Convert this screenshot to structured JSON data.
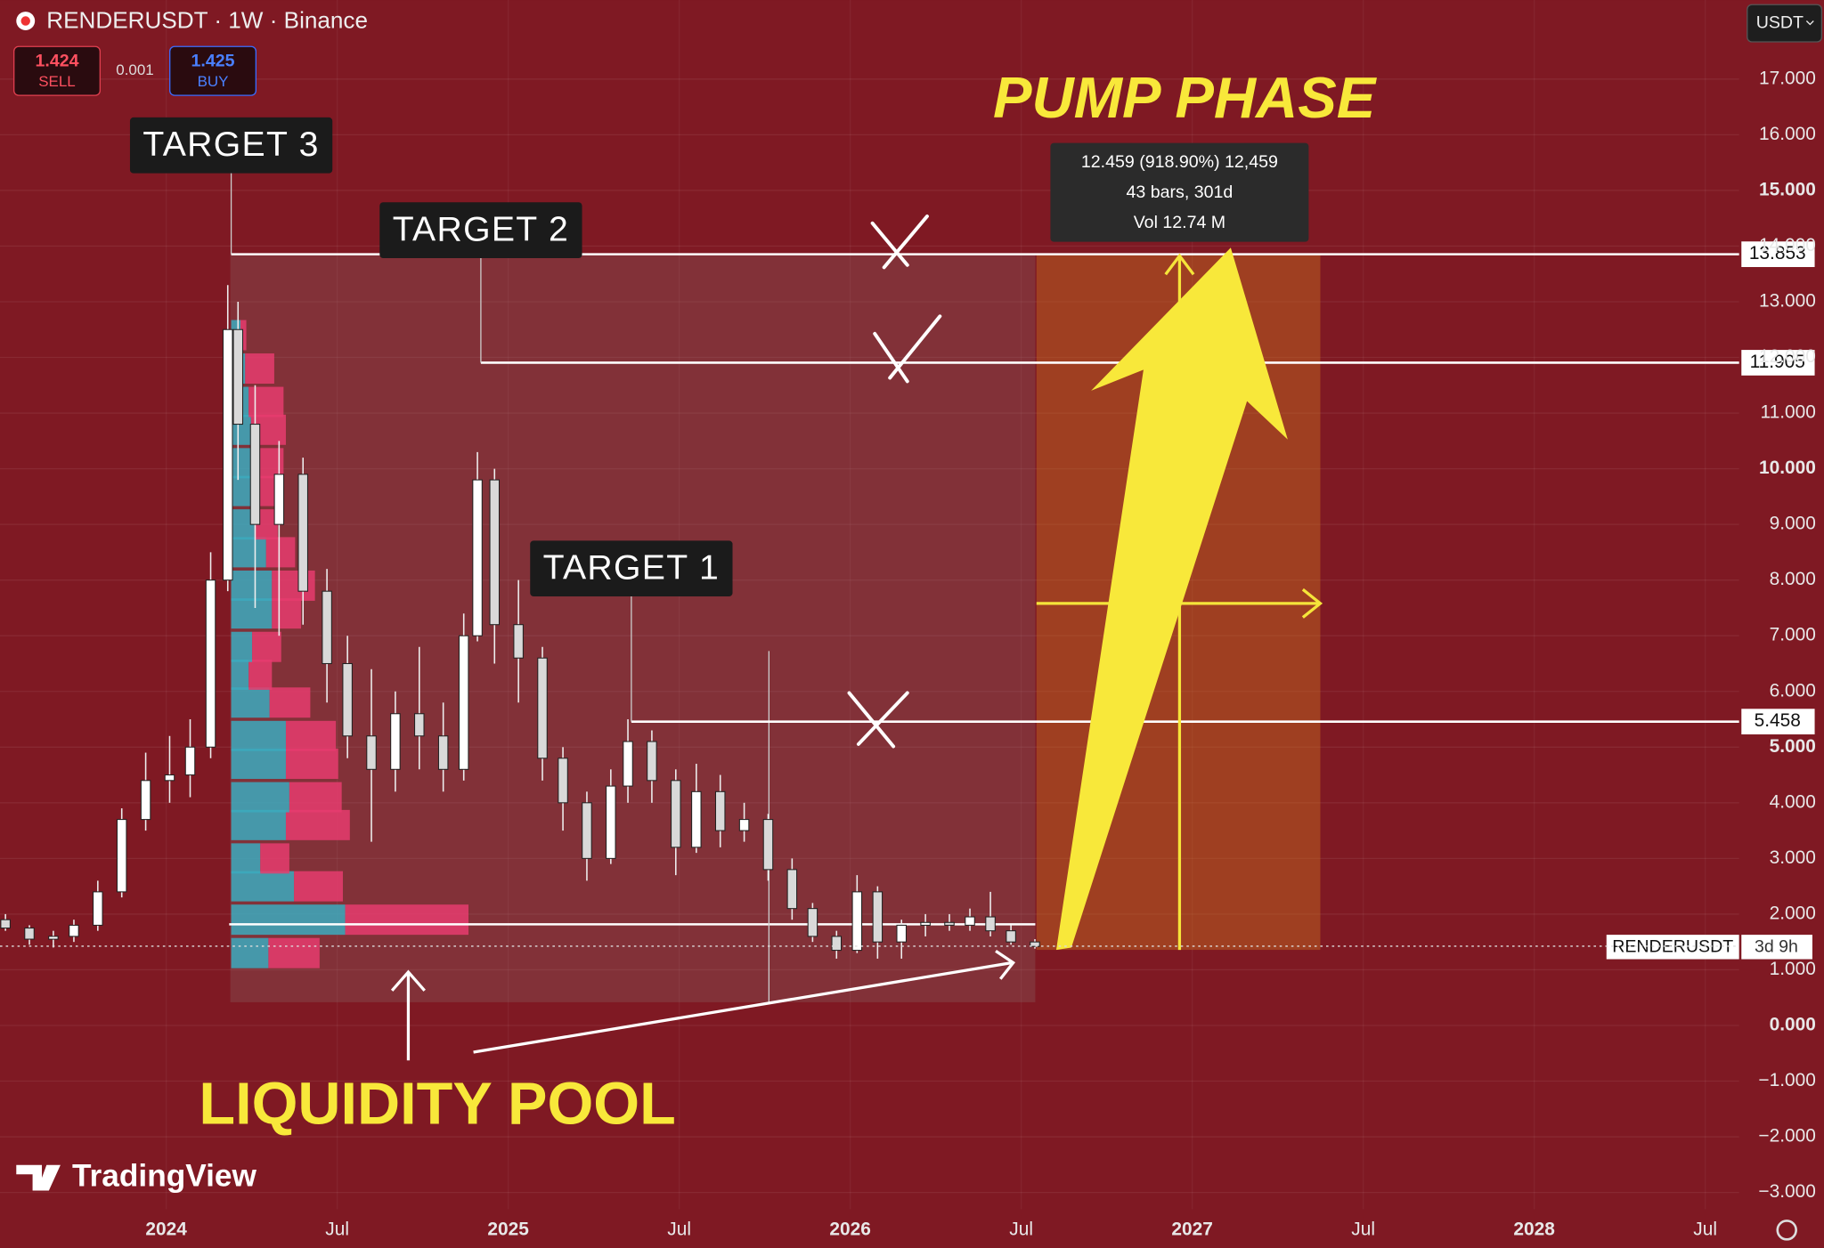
{
  "header": {
    "symbol": "RENDERUSDT · 1W · Binance",
    "sell_price": "1.424",
    "sell_label": "SELL",
    "spread": "0.001",
    "buy_price": "1.425",
    "buy_label": "BUY",
    "currency": "USDT"
  },
  "chart_data": {
    "type": "candlestick",
    "grid": true,
    "up_color": "#ffffff",
    "down_color": "#d9d9d9",
    "annotations": {
      "pump": "PUMP PHASE",
      "pool": "LIQUIDITY POOL",
      "logo": "TradingView",
      "symbol_tag": "RENDERUSDT",
      "countdown": "3d 9h"
    },
    "measure": {
      "line1": "12.459 (918.90%) 12,459",
      "line2": "43 bars, 301d",
      "line3": "Vol 12.74 M"
    },
    "levels": [
      {
        "label": "TARGET 3",
        "value": 13.853,
        "x": 2024.19
      },
      {
        "label": "TARGET 2",
        "value": 11.905,
        "x": 2024.92
      },
      {
        "label": "TARGET 1",
        "value": 5.458,
        "x": 2025.36
      }
    ],
    "last_price": 1.424,
    "x": [
      2023.53,
      2023.6,
      2023.67,
      2023.73,
      2023.8,
      2023.87,
      2023.94,
      2024.01,
      2024.07,
      2024.13,
      2024.18,
      2024.21,
      2024.26,
      2024.33,
      2024.4,
      2024.47,
      2024.53,
      2024.6,
      2024.67,
      2024.74,
      2024.81,
      2024.87,
      2024.91,
      2024.96,
      2025.03,
      2025.1,
      2025.16,
      2025.23,
      2025.3,
      2025.35,
      2025.42,
      2025.49,
      2025.55,
      2025.62,
      2025.69,
      2025.76,
      2025.83,
      2025.89,
      2025.96,
      2026.02,
      2026.08,
      2026.15,
      2026.22,
      2026.29,
      2026.35,
      2026.41,
      2026.47,
      2026.54
    ],
    "open": [
      1.9,
      1.75,
      1.55,
      1.6,
      1.8,
      2.4,
      3.7,
      4.4,
      4.5,
      5.0,
      8.0,
      12.5,
      10.8,
      9.0,
      9.9,
      7.8,
      6.5,
      5.2,
      4.6,
      5.6,
      5.2,
      4.6,
      7.0,
      9.8,
      7.2,
      6.6,
      4.8,
      4.0,
      3.0,
      4.3,
      5.1,
      4.4,
      3.2,
      4.2,
      3.5,
      3.7,
      2.8,
      2.1,
      1.6,
      1.35,
      2.4,
      1.5,
      1.8,
      1.85,
      1.8,
      1.95,
      1.7,
      1.5
    ],
    "high": [
      2.0,
      1.8,
      1.7,
      1.9,
      2.6,
      3.9,
      4.9,
      5.2,
      5.5,
      8.5,
      13.3,
      13.0,
      11.5,
      10.5,
      10.2,
      8.2,
      7.0,
      6.4,
      6.0,
      6.8,
      5.8,
      7.4,
      10.3,
      10.0,
      8.0,
      6.8,
      5.0,
      4.2,
      4.6,
      5.5,
      5.3,
      4.6,
      4.7,
      4.5,
      4.0,
      3.8,
      3.0,
      2.2,
      1.7,
      2.7,
      2.5,
      1.9,
      2.0,
      2.0,
      2.1,
      2.4,
      1.8,
      1.55
    ],
    "low": [
      1.7,
      1.45,
      1.4,
      1.5,
      1.7,
      2.3,
      3.5,
      4.0,
      4.1,
      4.8,
      7.8,
      9.8,
      7.5,
      7.0,
      7.2,
      5.8,
      4.8,
      3.3,
      4.2,
      4.6,
      4.2,
      4.4,
      6.9,
      6.5,
      5.8,
      4.4,
      3.5,
      2.6,
      2.9,
      4.0,
      4.0,
      2.7,
      3.1,
      3.2,
      3.3,
      2.6,
      1.9,
      1.5,
      1.2,
      1.3,
      1.2,
      1.2,
      1.6,
      1.7,
      1.7,
      1.6,
      1.45,
      1.38
    ],
    "close": [
      1.75,
      1.55,
      1.6,
      1.8,
      2.4,
      3.7,
      4.4,
      4.5,
      5.0,
      8.0,
      12.5,
      10.8,
      9.0,
      9.9,
      7.8,
      6.5,
      5.2,
      4.6,
      5.6,
      5.2,
      4.6,
      7.0,
      9.8,
      7.2,
      6.6,
      4.8,
      4.0,
      3.0,
      4.3,
      5.1,
      4.4,
      3.2,
      4.2,
      3.5,
      3.7,
      2.8,
      2.1,
      1.6,
      1.35,
      2.4,
      1.5,
      1.8,
      1.85,
      1.8,
      1.95,
      1.7,
      1.5,
      1.42
    ],
    "volume_profile": {
      "prices": [
        1.3,
        1.9,
        2.5,
        3.0,
        3.6,
        4.1,
        4.7,
        5.2,
        5.8,
        6.3,
        6.8,
        7.4,
        7.9,
        8.5,
        9.0,
        9.6,
        10.1,
        10.7,
        11.2,
        11.8,
        12.4
      ],
      "up": [
        32,
        98,
        54,
        25,
        47,
        50,
        47,
        47,
        33,
        15,
        18,
        35,
        35,
        30,
        20,
        17,
        20,
        17,
        15,
        12,
        8
      ],
      "down": [
        44,
        106,
        42,
        25,
        55,
        45,
        45,
        43,
        35,
        20,
        25,
        25,
        37,
        25,
        20,
        20,
        25,
        30,
        30,
        25,
        5
      ]
    },
    "xlim": [
      2023.514,
      2028.599
    ],
    "xticks": [
      {
        "value": 2024,
        "label": "2024"
      },
      {
        "value": 2024.5,
        "label": "Jul"
      },
      {
        "value": 2025,
        "label": "2025"
      },
      {
        "value": 2025.5,
        "label": "Jul"
      },
      {
        "value": 2026,
        "label": "2026"
      },
      {
        "value": 2026.5,
        "label": "Jul"
      },
      {
        "value": 2027,
        "label": "2027"
      },
      {
        "value": 2027.5,
        "label": "Jul"
      },
      {
        "value": 2028,
        "label": "2028"
      },
      {
        "value": 2028.5,
        "label": "Jul"
      }
    ],
    "ylim": [
      -3.3,
      18.42
    ],
    "yticks": [
      {
        "value": 17,
        "label": "17.000"
      },
      {
        "value": 16,
        "label": "16.000"
      },
      {
        "value": 15,
        "label": "15.000"
      },
      {
        "value": 14,
        "label": "14.000"
      },
      {
        "value": 13,
        "label": "13.000"
      },
      {
        "value": 12,
        "label": "12.000"
      },
      {
        "value": 11,
        "label": "11.000"
      },
      {
        "value": 10,
        "label": "10.000"
      },
      {
        "value": 9,
        "label": "9.000"
      },
      {
        "value": 8,
        "label": "8.000"
      },
      {
        "value": 7,
        "label": "7.000"
      },
      {
        "value": 6,
        "label": "6.000"
      },
      {
        "value": 5,
        "label": "5.000"
      },
      {
        "value": 4,
        "label": "4.000"
      },
      {
        "value": 3,
        "label": "3.000"
      },
      {
        "value": 2,
        "label": "2.000"
      },
      {
        "value": 1,
        "label": "1.000"
      },
      {
        "value": 0,
        "label": "0.000"
      },
      {
        "value": -1,
        "label": "−1.000"
      },
      {
        "value": -2,
        "label": "−2.000"
      },
      {
        "value": -3,
        "label": "−3.000"
      }
    ]
  }
}
